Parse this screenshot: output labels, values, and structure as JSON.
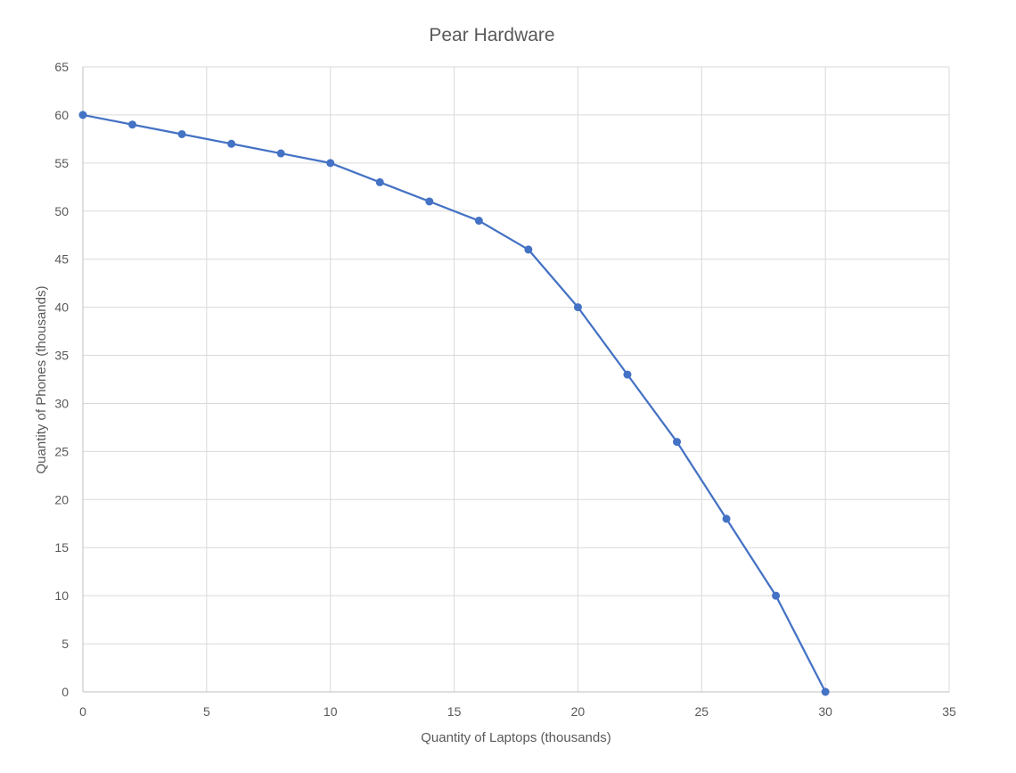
{
  "chart_data": {
    "type": "scatter",
    "title": "Pear Hardware",
    "xlabel": "Quantity of Laptops (thousands)",
    "ylabel": "Quantity of Phones (thousands)",
    "xlim": [
      0,
      35
    ],
    "ylim": [
      0,
      65
    ],
    "xticks": [
      0,
      5,
      10,
      15,
      20,
      25,
      30,
      35
    ],
    "yticks": [
      0,
      5,
      10,
      15,
      20,
      25,
      30,
      35,
      40,
      45,
      50,
      55,
      60,
      65
    ],
    "grid": true,
    "legend": "none",
    "series": [
      {
        "color": "#4472C4",
        "marker": "circle",
        "line": true,
        "points": [
          {
            "x": 0,
            "y": 60
          },
          {
            "x": 2,
            "y": 59
          },
          {
            "x": 4,
            "y": 58
          },
          {
            "x": 6,
            "y": 57
          },
          {
            "x": 8,
            "y": 56
          },
          {
            "x": 10,
            "y": 55
          },
          {
            "x": 12,
            "y": 53
          },
          {
            "x": 14,
            "y": 51
          },
          {
            "x": 16,
            "y": 49
          },
          {
            "x": 18,
            "y": 46
          },
          {
            "x": 20,
            "y": 40
          },
          {
            "x": 22,
            "y": 33
          },
          {
            "x": 24,
            "y": 26
          },
          {
            "x": 26,
            "y": 18
          },
          {
            "x": 28,
            "y": 10
          },
          {
            "x": 30,
            "y": 0
          }
        ]
      }
    ],
    "colors": {
      "grid": "#d9d9d9",
      "axis": "#bfbfbf",
      "text": "#595959"
    }
  }
}
